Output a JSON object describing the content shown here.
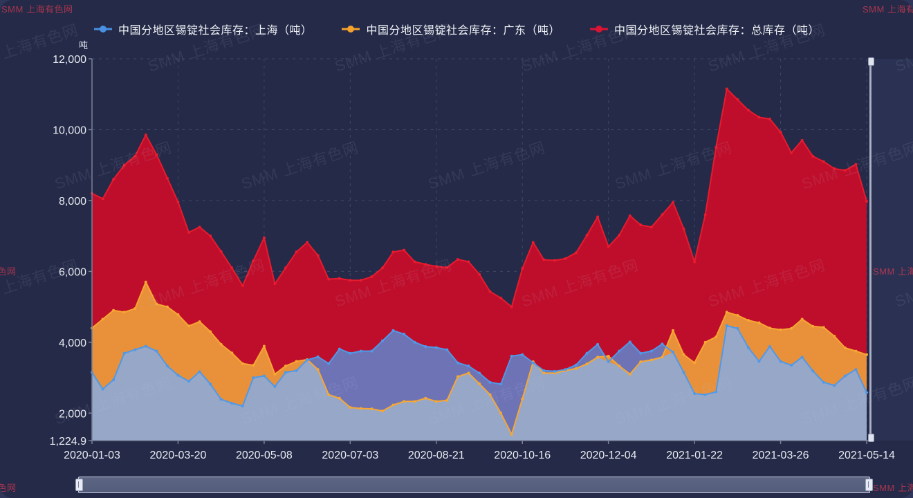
{
  "page": {
    "bg_outer": "#303659",
    "bg_panel": "#242a47",
    "bg_right_strip": "#2a3152",
    "axis_color": "#7a8199",
    "grid_color": "#3f4769",
    "label_color": "#e9ebf2"
  },
  "watermark": {
    "text": "SMM 上海有色网",
    "diag_color": "rgba(190,198,224,0.10)",
    "corner_color": "rgba(206,58,82,0.78)"
  },
  "legend": {
    "items": [
      {
        "label": "中国分地区锡锭社会库存：上海（吨）",
        "color": "#4a90e2"
      },
      {
        "label": "中国分地区锡锭社会库存：广东（吨）",
        "color": "#f6a22d"
      },
      {
        "label": "中国分地区锡锭社会库存：总库存（吨）",
        "color": "#dc1434"
      }
    ]
  },
  "chart_data": {
    "type": "area",
    "title": "",
    "unit_label": "吨",
    "xlabel": "",
    "ylabel": "吨",
    "grid": "dashed horizontal and vertical gridlines",
    "legend_position": "top",
    "y_min": 1224.9,
    "y_max": 12000,
    "y_ticks": [
      {
        "label": "12,000",
        "value": 12000
      },
      {
        "label": "10,000",
        "value": 10000
      },
      {
        "label": "8,000",
        "value": 8000
      },
      {
        "label": "6,000",
        "value": 6000
      },
      {
        "label": "4,000",
        "value": 4000
      },
      {
        "label": "2,000",
        "value": 2000
      },
      {
        "label": "1,224.9",
        "value": 1224.9
      }
    ],
    "x_tick_labels": [
      "2020-01-03",
      "2020-03-20",
      "2020-05-08",
      "2020-07-03",
      "2020-08-21",
      "2020-10-16",
      "2020-12-04",
      "2021-01-22",
      "2021-03-26",
      "2021-05-14"
    ],
    "series": [
      {
        "name": "中国分地区锡锭社会库存：上海（吨）",
        "line_color": "#4f99e8",
        "fill_over_total": "#6e73b6",
        "fill_over_guangdong": "#97a7c8",
        "values": [
          3150,
          2680,
          2940,
          3690,
          3790,
          3890,
          3750,
          3330,
          3070,
          2900,
          3170,
          2820,
          2390,
          2280,
          2200,
          3000,
          3050,
          2750,
          3150,
          3200,
          3500,
          3590,
          3400,
          3810,
          3690,
          3750,
          3750,
          4040,
          4330,
          4230,
          4000,
          3880,
          3850,
          3790,
          3420,
          3330,
          3130,
          2870,
          2820,
          3610,
          3650,
          3420,
          3200,
          3180,
          3230,
          3360,
          3690,
          3940,
          3450,
          3750,
          4010,
          3690,
          3750,
          3950,
          3720,
          3150,
          2550,
          2520,
          2600,
          4470,
          4390,
          3850,
          3460,
          3880,
          3460,
          3350,
          3580,
          3190,
          2870,
          2780,
          3050,
          3230,
          2580
        ]
      },
      {
        "name": "中国分地区锡锭社会库存：广东（吨）",
        "line_color": "#f7a733",
        "fill_color": "#e8913a",
        "values": [
          4400,
          4650,
          4900,
          4850,
          4950,
          5700,
          5080,
          5000,
          4780,
          4460,
          4580,
          4300,
          3940,
          3700,
          3400,
          3350,
          3890,
          3100,
          3330,
          3460,
          3510,
          3230,
          2520,
          2420,
          2160,
          2130,
          2120,
          2060,
          2230,
          2330,
          2330,
          2420,
          2330,
          2360,
          3030,
          3130,
          2830,
          2520,
          2000,
          1400,
          2400,
          3450,
          3130,
          3130,
          3200,
          3260,
          3390,
          3580,
          3610,
          3330,
          3100,
          3450,
          3500,
          3580,
          4330,
          3650,
          3420,
          4000,
          4150,
          4850,
          4760,
          4620,
          4550,
          4400,
          4350,
          4390,
          4650,
          4450,
          4420,
          4170,
          3840,
          3750,
          3650
        ]
      },
      {
        "name": "中国分地区锡锭社会库存：总库存（吨）",
        "line_color": "#e81b2f",
        "fill_color": "#bf0e2b",
        "values": [
          8200,
          8050,
          8600,
          9000,
          9250,
          9850,
          9300,
          8630,
          7960,
          7100,
          7250,
          7000,
          6560,
          6100,
          5600,
          6300,
          6950,
          5650,
          6100,
          6550,
          6820,
          6450,
          5780,
          5800,
          5750,
          5750,
          5850,
          6100,
          6550,
          6600,
          6270,
          6200,
          6140,
          6110,
          6340,
          6270,
          5920,
          5430,
          5250,
          5000,
          6080,
          6820,
          6330,
          6310,
          6360,
          6530,
          7020,
          7540,
          6700,
          7020,
          7570,
          7310,
          7250,
          7600,
          7950,
          7200,
          6270,
          7600,
          9500,
          11150,
          10850,
          10550,
          10350,
          10300,
          9930,
          9350,
          9700,
          9250,
          9100,
          8900,
          8850,
          9020,
          7980
        ]
      }
    ]
  },
  "slider": {
    "kind": "horizontal-datazoom",
    "window": "full-range"
  },
  "right_scrollbar": {
    "kind": "vertical-datazoom",
    "window": "full-range"
  }
}
